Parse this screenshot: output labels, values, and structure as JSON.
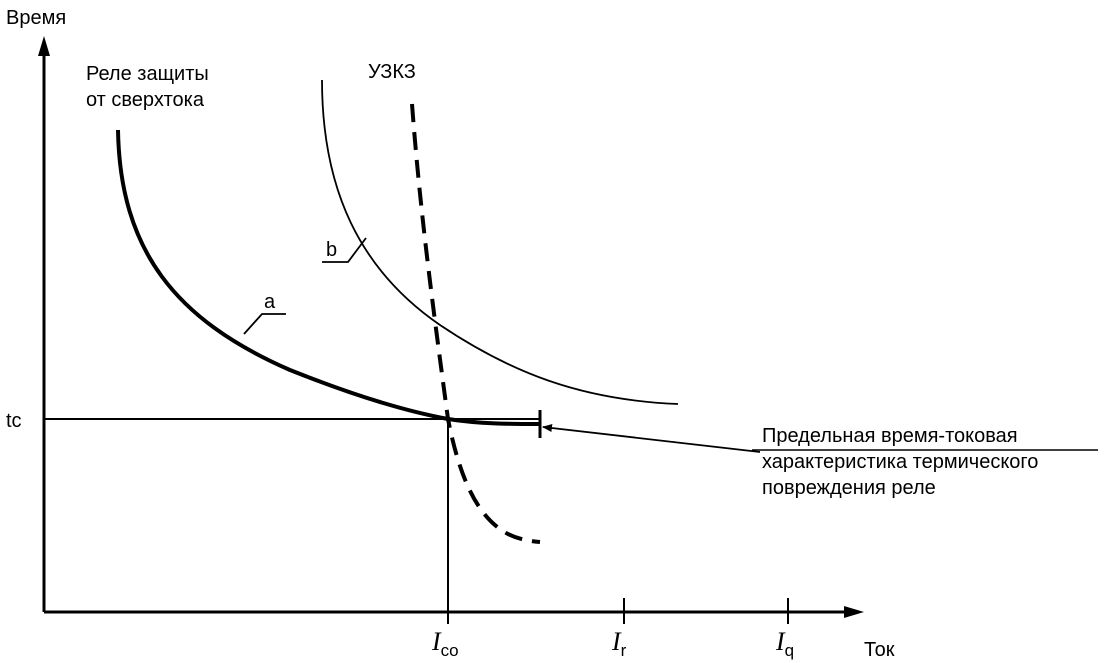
{
  "axes": {
    "y_label": "Время",
    "x_label": "Ток",
    "tc_label": "tc"
  },
  "x_ticks": [
    {
      "symbol": "I",
      "sub": "co"
    },
    {
      "symbol": "I",
      "sub": "r"
    },
    {
      "symbol": "I",
      "sub": "q"
    }
  ],
  "curves": {
    "relay": {
      "line1": "Реле защиты",
      "line2": "от сверхтока",
      "tag": "a"
    },
    "fuse": {
      "label": "УЗКЗ"
    },
    "other": {
      "tag": "b"
    }
  },
  "limit_label": {
    "line1": "Предельная время-токовая",
    "line2": "характеристика термического",
    "line3": "повреждения реле"
  }
}
